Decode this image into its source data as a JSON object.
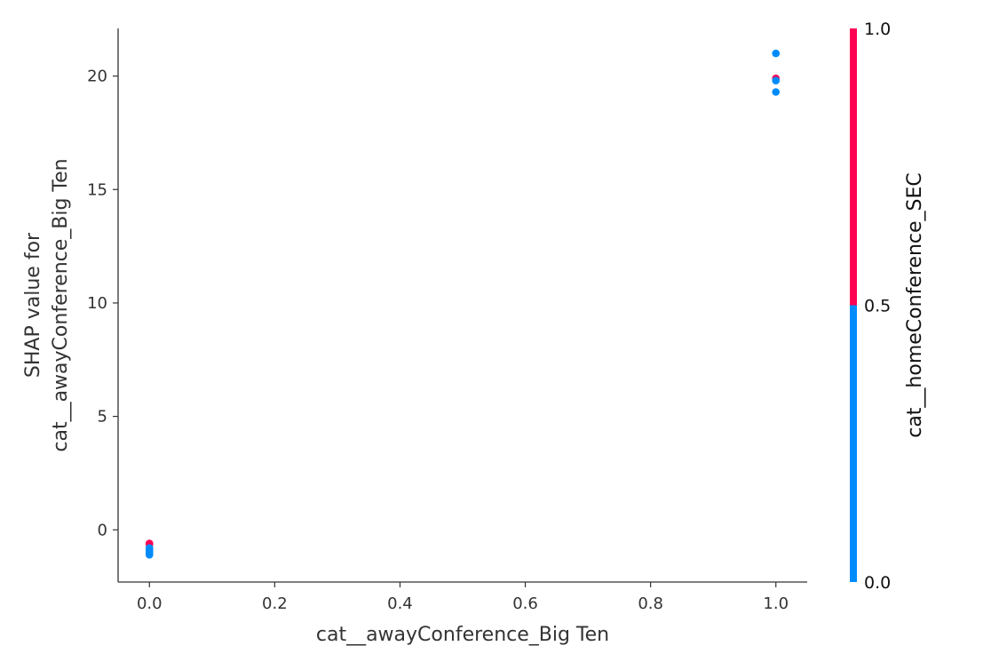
{
  "chart_data": {
    "type": "scatter",
    "title": "",
    "xlabel": "cat__awayConference_Big Ten",
    "ylabel": [
      "SHAP value for",
      "cat__awayConference_Big Ten"
    ],
    "xlim": [
      -0.05,
      1.05
    ],
    "ylim": [
      -2.3,
      22.1
    ],
    "x_ticks": [
      0.0,
      0.2,
      0.4,
      0.6,
      0.8,
      1.0
    ],
    "x_tick_labels": [
      "0.0",
      "0.2",
      "0.4",
      "0.6",
      "0.8",
      "1.0"
    ],
    "y_ticks": [
      0,
      5,
      10,
      15,
      20
    ],
    "y_tick_labels": [
      "0",
      "5",
      "10",
      "15",
      "20"
    ],
    "colorbar": {
      "label": "cat__homeConference_SEC",
      "ticks": [
        0.0,
        0.5,
        1.0
      ],
      "tick_labels": [
        "0.0",
        "0.5",
        "1.0"
      ],
      "low_color": "#008bfb",
      "high_color": "#ff0052"
    },
    "points": [
      {
        "x": 0.0,
        "y": -0.6,
        "c": 1
      },
      {
        "x": 0.0,
        "y": -0.65,
        "c": 1
      },
      {
        "x": 0.0,
        "y": -0.8,
        "c": 0
      },
      {
        "x": 0.0,
        "y": -0.85,
        "c": 0
      },
      {
        "x": 0.0,
        "y": -0.9,
        "c": 0
      },
      {
        "x": 0.0,
        "y": -0.95,
        "c": 0
      },
      {
        "x": 0.0,
        "y": -1.0,
        "c": 0
      },
      {
        "x": 0.0,
        "y": -1.05,
        "c": 0
      },
      {
        "x": 0.0,
        "y": -1.1,
        "c": 0
      },
      {
        "x": 1.0,
        "y": 21.0,
        "c": 0
      },
      {
        "x": 1.0,
        "y": 19.9,
        "c": 1
      },
      {
        "x": 1.0,
        "y": 19.8,
        "c": 0
      },
      {
        "x": 1.0,
        "y": 19.3,
        "c": 0
      }
    ]
  }
}
